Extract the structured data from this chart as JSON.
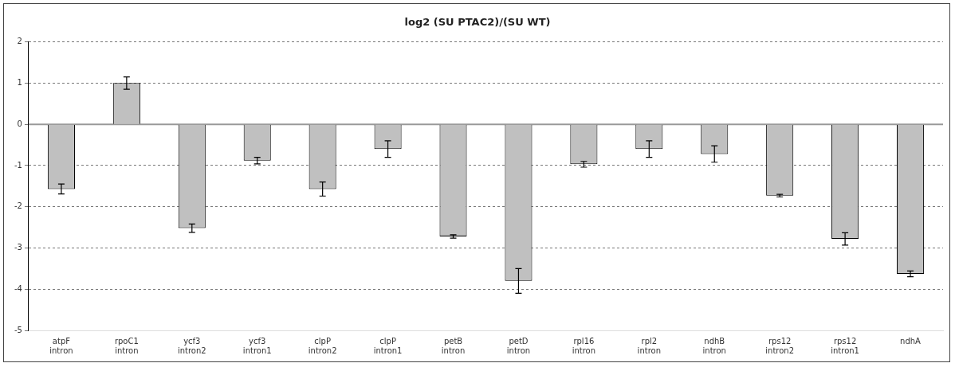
{
  "chart_data": {
    "type": "bar",
    "title": "log2 (SU PTAC2)/(SU WT)",
    "categories": [
      "atpF intron",
      "rpoC1 intron",
      "ycf3 intron2",
      "ycf3 intron1",
      "clpP intron2",
      "clpP intron1",
      "petB intron",
      "petD intron",
      "rpl16 intron",
      "rpl2 intron",
      "ndhB intron",
      "rps12 intron2",
      "rps12 intron1",
      "ndhA"
    ],
    "values": [
      -1.57,
      1.0,
      -2.52,
      -0.88,
      -1.57,
      -0.6,
      -2.72,
      -3.8,
      -0.97,
      -0.6,
      -0.72,
      -1.73,
      -2.78,
      -3.63
    ],
    "errors": [
      0.12,
      0.15,
      0.1,
      0.08,
      0.17,
      0.2,
      0.04,
      0.3,
      0.07,
      0.2,
      0.2,
      0.03,
      0.15,
      0.07
    ],
    "color": "#c0c0c0",
    "ylim": [
      -5,
      2
    ],
    "yticks": [
      -5,
      -4,
      -3,
      -2,
      -1,
      0,
      1,
      2
    ],
    "grid": "y",
    "legend": false
  }
}
